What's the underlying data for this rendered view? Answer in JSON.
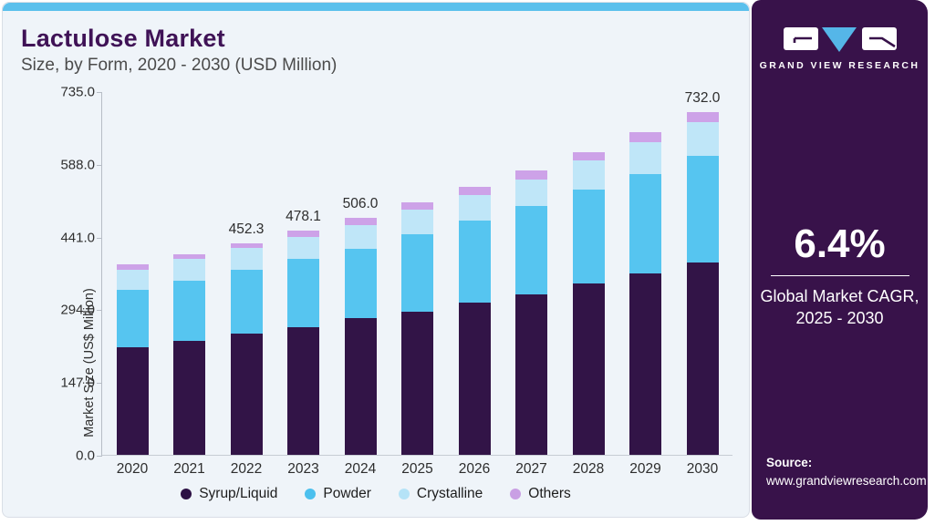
{
  "header": {
    "title": "Lactulose Market",
    "subtitle": "Size, by Form, 2020 - 2030 (USD Million)"
  },
  "chart_data": {
    "type": "bar",
    "stacked": true,
    "title": "Lactulose Market Size, by Form, 2020 - 2030 (USD Million)",
    "categories": [
      "2020",
      "2021",
      "2022",
      "2023",
      "2024",
      "2025",
      "2026",
      "2027",
      "2028",
      "2029",
      "2030"
    ],
    "series": [
      {
        "name": "Syrup/Liquid",
        "color": "#321447",
        "legend_dot_color": "#2d1145",
        "values": [
          229.3,
          243.6,
          258.7,
          271.8,
          291.0,
          305.6,
          325.1,
          343.3,
          366.2,
          388.0,
          411.0
        ]
      },
      {
        "name": "Powder",
        "color": "#56c5f0",
        "legend_dot_color": "#4cc0ee",
        "values": [
          123.8,
          129.0,
          136.9,
          146.6,
          148.6,
          164.8,
          174.6,
          187.1,
          200.8,
          212.0,
          228.0
        ]
      },
      {
        "name": "Crystalline",
        "color": "#bfe6f8",
        "legend_dot_color": "#b5e3f7",
        "values": [
          41.1,
          45.0,
          45.6,
          46.9,
          50.2,
          52.2,
          54.2,
          57.3,
          61.2,
          66.5,
          70.9
        ]
      },
      {
        "name": "Others",
        "color": "#cda2e8",
        "legend_dot_color": "#c99fe4",
        "values": [
          12.1,
          10.5,
          11.1,
          12.8,
          16.2,
          15.6,
          18.4,
          19.6,
          18.2,
          21.5,
          22.1
        ]
      }
    ],
    "totals": [
      406.3,
      428.1,
      452.3,
      478.1,
      506.0,
      538.2,
      572.3,
      607.3,
      646.4,
      688.0,
      732.0
    ],
    "totals_labeled": {
      "2022": "452.3",
      "2023": "478.1",
      "2024": "506.0",
      "2030": "732.0"
    },
    "ylabel": "Market Size (US$ Million)",
    "xlabel": "",
    "yticks": [
      "735.0",
      "588.0",
      "441.0",
      "294.0",
      "147.0",
      "0.0"
    ],
    "ylim": [
      0,
      735
    ],
    "grid": false,
    "legend_position": "bottom"
  },
  "sidebar": {
    "logo_name": "GRAND VIEW RESEARCH",
    "cagr_value": "6.4%",
    "cagr_caption_line1": "Global Market CAGR,",
    "cagr_caption_line2": "2025 - 2030",
    "source_label": "Source:",
    "source_text": "www.grandviewresearch.com"
  },
  "colors": {
    "card_background": "#eff4f9",
    "card_border": "#d9dee6",
    "top_accent_bar": "#5bc0ec",
    "title_text": "#3f1256",
    "subtitle_text": "#4b4b4b",
    "axis_text": "#2f2f2f",
    "sidebar_background": "#38124a",
    "sidebar_text": "#ffffff",
    "logo_triangle": "#55b6e8"
  }
}
